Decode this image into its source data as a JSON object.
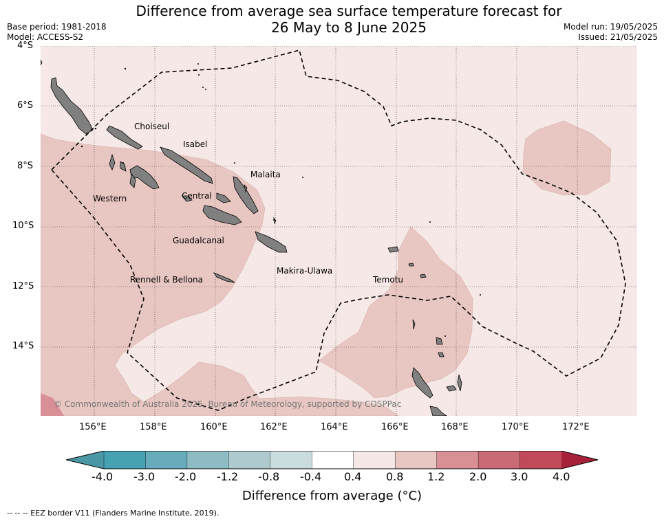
{
  "title_line1": "Difference from average sea surface temperature forecast for",
  "title_line2": "26 May to 8 June 2025",
  "base_period": "Base period: 1981-2018",
  "model": "Model: ACCESS-S2",
  "model_run": "Model run: 19/05/2025",
  "issued": "Issued: 21/05/2025",
  "lat_labels": [
    "4°S",
    "6°S",
    "8°S",
    "10°S",
    "12°S",
    "14°S"
  ],
  "lon_labels": [
    "156°E",
    "158°E",
    "160°E",
    "162°E",
    "164°E",
    "166°E",
    "168°E",
    "170°E",
    "172°E"
  ],
  "regions": [
    "Choiseul",
    "Isabel",
    "Malaita",
    "Western",
    "Central",
    "Guadalcanal",
    "Makira-Ulawa",
    "Rennell & Bellona",
    "Temotu"
  ],
  "copyright": "© Commonwealth of Australia 2025, Bureau of Meteorology, supported by COSPPac",
  "colorbar": {
    "title": "Difference from average (°C)",
    "ticks": [
      "-4.0",
      "-3.0",
      "-2.0",
      "-1.2",
      "-0.8",
      "-0.4",
      "0.4",
      "0.8",
      "1.2",
      "2.0",
      "3.0",
      "4.0"
    ],
    "colors": [
      "#4a97a5",
      "#46a1b2",
      "#68abba",
      "#8ebcc5",
      "#aecace",
      "#cbdcdf",
      "#ffffff",
      "#f5e8e6",
      "#e8c6c1",
      "#d89096",
      "#c96a74",
      "#c04a5a",
      "#a8213a"
    ]
  },
  "footer": "--  --  -- EEZ border V11 (Flanders Marine Institute, 2019)."
}
